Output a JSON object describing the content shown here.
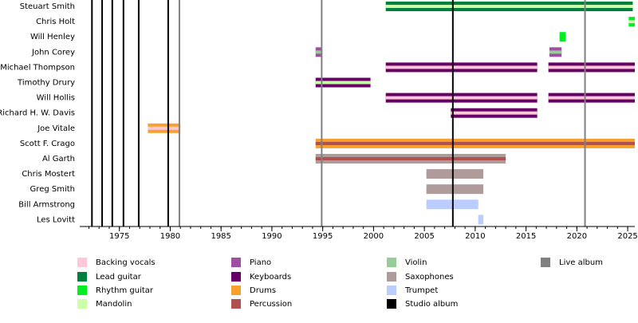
{
  "chart_data": {
    "type": "timeline",
    "xlim": [
      1971.1,
      2025.7
    ],
    "xticks": [
      1975,
      1980,
      1985,
      1990,
      1995,
      2000,
      2005,
      2010,
      2015,
      2020,
      2025
    ],
    "rows": [
      {
        "name": "Steuart Smith",
        "stints": [
          {
            "start": 2001.2,
            "end": 2025.5,
            "color": "#007f3f",
            "stripe": "#ccffaa"
          }
        ]
      },
      {
        "name": "Chris Holt",
        "stints": [
          {
            "start": 2025.1,
            "end": 2025.7,
            "color": "#00ee22",
            "stripe": "#ccffaa"
          }
        ]
      },
      {
        "name": "Will Henley",
        "stints": [
          {
            "start": 2018.3,
            "end": 2018.9,
            "color": "#00ee22",
            "stripe": "#00ee22"
          }
        ]
      },
      {
        "name": "John Corey",
        "stints": [
          {
            "start": 1994.3,
            "end": 1994.9,
            "color": "#a050a0",
            "stripe": "#99cc99"
          },
          {
            "start": 2017.3,
            "end": 2018.5,
            "color": "#a050a0",
            "stripe": "#99cc99"
          }
        ]
      },
      {
        "name": "Michael Thompson",
        "stints": [
          {
            "start": 2001.2,
            "end": 2016.1,
            "color": "#660066",
            "stripe": "#ffc8d8"
          },
          {
            "start": 2017.2,
            "end": 2025.7,
            "color": "#660066",
            "stripe": "#ffc8d8"
          }
        ]
      },
      {
        "name": "Timothy Drury",
        "stints": [
          {
            "start": 1994.3,
            "end": 1999.7,
            "color": "#660066",
            "stripe": "#ccffaa"
          }
        ]
      },
      {
        "name": "Will Hollis",
        "stints": [
          {
            "start": 2001.2,
            "end": 2016.1,
            "color": "#660066",
            "stripe": "#ffc8d8"
          },
          {
            "start": 2017.2,
            "end": 2025.7,
            "color": "#660066",
            "stripe": "#ffc8d8"
          }
        ]
      },
      {
        "name": "Richard H. W. Davis",
        "stints": [
          {
            "start": 2007.6,
            "end": 2016.1,
            "color": "#660066",
            "stripe": "#ffc8d8"
          }
        ]
      },
      {
        "name": "Joe Vitale",
        "stints": [
          {
            "start": 1977.8,
            "end": 1981.0,
            "color": "#f7a030",
            "stripe": "#ffc8d8"
          }
        ]
      },
      {
        "name": "Scott F. Crago",
        "stints": [
          {
            "start": 1994.3,
            "end": 2025.7,
            "color": "#f7a030",
            "stripe": "#b05050"
          }
        ]
      },
      {
        "name": "Al Garth",
        "stints": [
          {
            "start": 1994.3,
            "end": 2013.0,
            "color": "#b09b9b",
            "stripe": "#b05050"
          }
        ]
      },
      {
        "name": "Chris Mostert",
        "stints": [
          {
            "start": 2005.2,
            "end": 2010.8,
            "color": "#b09b9b",
            "stripe": "#b09b9b"
          }
        ]
      },
      {
        "name": "Greg Smith",
        "stints": [
          {
            "start": 2005.2,
            "end": 2010.8,
            "color": "#b09b9b",
            "stripe": "#b09b9b"
          }
        ]
      },
      {
        "name": "Bill Armstrong",
        "stints": [
          {
            "start": 2005.2,
            "end": 2010.3,
            "color": "#bbccff",
            "stripe": "#bbccff"
          }
        ]
      },
      {
        "name": "Les Lovitt",
        "stints": [
          {
            "start": 2010.3,
            "end": 2010.8,
            "color": "#bbccff",
            "stripe": "#bbccff"
          }
        ]
      }
    ],
    "events": [
      {
        "x": 1972.3,
        "color": "#000000"
      },
      {
        "x": 1973.3,
        "color": "#000000"
      },
      {
        "x": 1974.3,
        "color": "#000000"
      },
      {
        "x": 1975.4,
        "color": "#000000"
      },
      {
        "x": 1976.9,
        "color": "#000000"
      },
      {
        "x": 1979.8,
        "color": "#000000"
      },
      {
        "x": 1980.9,
        "color": "#808080"
      },
      {
        "x": 1994.9,
        "color": "#808080"
      },
      {
        "x": 2007.8,
        "color": "#000000"
      },
      {
        "x": 2020.8,
        "color": "#808080"
      }
    ],
    "legend": [
      {
        "name": "Backing vocals",
        "color": "#ffc8d8"
      },
      {
        "name": "Lead guitar",
        "color": "#007f3f"
      },
      {
        "name": "Rhythm guitar",
        "color": "#00ee22"
      },
      {
        "name": "Mandolin",
        "color": "#ccffaa"
      },
      {
        "name": "Piano",
        "color": "#a050a0"
      },
      {
        "name": "Keyboards",
        "color": "#660066"
      },
      {
        "name": "Drums",
        "color": "#f7a030"
      },
      {
        "name": "Percussion",
        "color": "#b05050"
      },
      {
        "name": "Violin",
        "color": "#99cc99"
      },
      {
        "name": "Saxophones",
        "color": "#b09b9b"
      },
      {
        "name": "Trumpet",
        "color": "#bbccff"
      },
      {
        "name": "Studio album",
        "color": "#000000"
      },
      {
        "name": "Live album",
        "color": "#808080"
      }
    ]
  }
}
